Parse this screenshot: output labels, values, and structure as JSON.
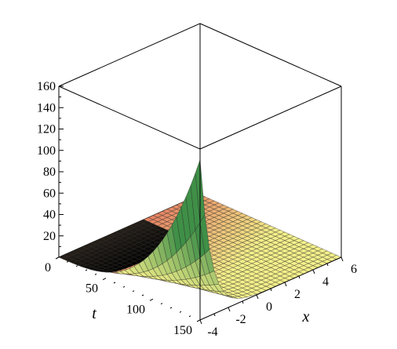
{
  "chart_data": {
    "type": "surface3d",
    "title": "",
    "xlabel": "x",
    "tlabel": "t",
    "zlabel": "",
    "x_range": [
      -4,
      6
    ],
    "t_range": [
      0,
      150
    ],
    "z_range": [
      0,
      160
    ],
    "x_ticks": [
      {
        "value": -4,
        "label": "-4"
      },
      {
        "value": -2,
        "label": "-2"
      },
      {
        "value": 0,
        "label": "0"
      },
      {
        "value": 2,
        "label": "2"
      },
      {
        "value": 4,
        "label": "4"
      },
      {
        "value": 6,
        "label": "6"
      }
    ],
    "t_ticks": [
      {
        "value": 0,
        "label": "0"
      },
      {
        "value": 50,
        "label": "50"
      },
      {
        "value": 100,
        "label": "100"
      },
      {
        "value": 150,
        "label": "150"
      }
    ],
    "z_ticks": [
      {
        "value": 20,
        "label": "20"
      },
      {
        "value": 40,
        "label": "40"
      },
      {
        "value": 60,
        "label": "60"
      },
      {
        "value": 80,
        "label": "80"
      },
      {
        "value": 100,
        "label": "100"
      },
      {
        "value": 120,
        "label": "120"
      },
      {
        "value": 140,
        "label": "140"
      },
      {
        "value": 160,
        "label": "160"
      }
    ],
    "z_minor_ticks": [
      10,
      30,
      50,
      70,
      90,
      110,
      130,
      150
    ],
    "surface": {
      "description_values": {
        "peak": {
          "x": -4,
          "t": 150,
          "z": 150
        },
        "x_samples": [
          -4,
          -3,
          -2,
          -1,
          0,
          1,
          2,
          3,
          4,
          5,
          6
        ],
        "t_samples": [
          0,
          75,
          150
        ],
        "z_at_t150": [
          150,
          40,
          12,
          4,
          1,
          0,
          0,
          0,
          0,
          0,
          0
        ]
      },
      "colors": {
        "low_near": "#e05a55",
        "mid": "#f4f08a",
        "high": "#3f8f47"
      }
    }
  }
}
